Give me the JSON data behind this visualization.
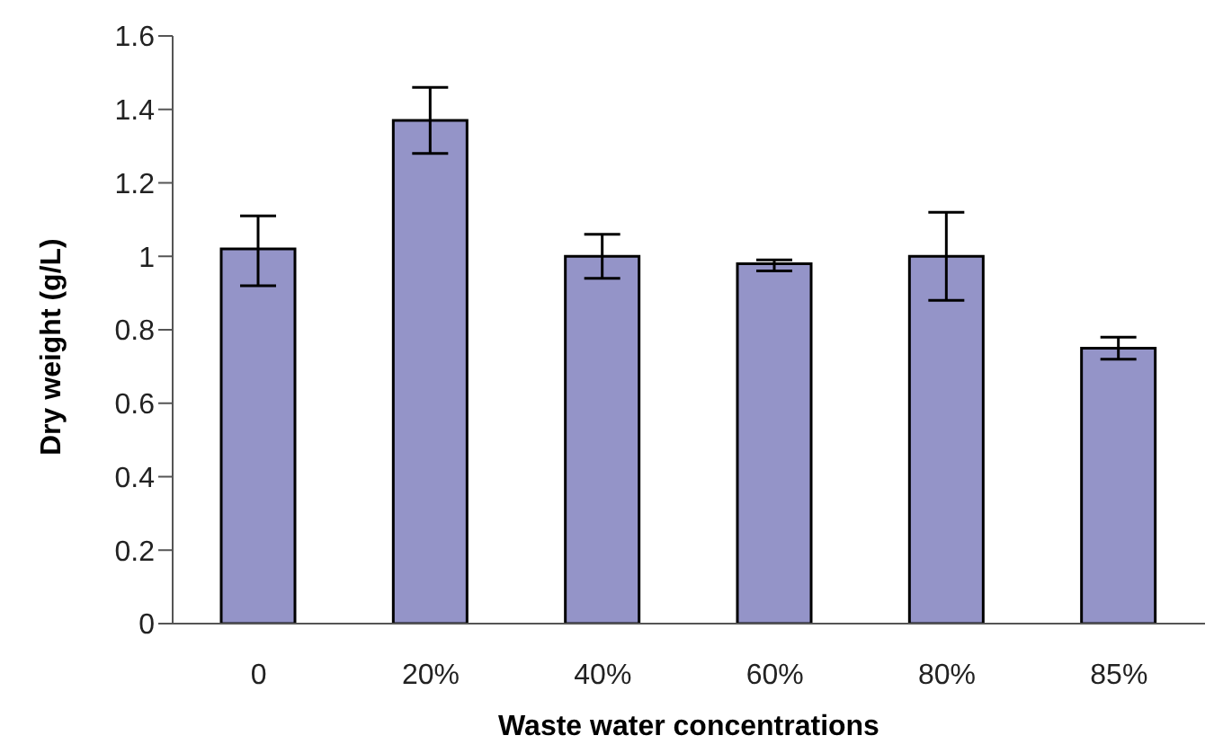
{
  "chart_data": {
    "type": "bar",
    "xlabel": "Waste water concentrations",
    "ylabel": "Dry weight (g/L)",
    "categories": [
      "0",
      "20%",
      "40%",
      "60%",
      "80%",
      "85%"
    ],
    "values": [
      1.02,
      1.37,
      1.0,
      0.98,
      1.0,
      0.75
    ],
    "errors": [
      [
        0.92,
        1.11
      ],
      [
        1.28,
        1.46
      ],
      [
        0.94,
        1.06
      ],
      [
        0.96,
        0.99
      ],
      [
        0.88,
        1.12
      ],
      [
        0.72,
        0.78
      ]
    ],
    "color": "#9494c8",
    "ylim": [
      0,
      1.6
    ],
    "yticks": [
      0,
      0.2,
      0.4,
      0.6,
      0.8,
      1,
      1.2,
      1.4,
      1.6
    ],
    "grid": false,
    "legend": false
  }
}
